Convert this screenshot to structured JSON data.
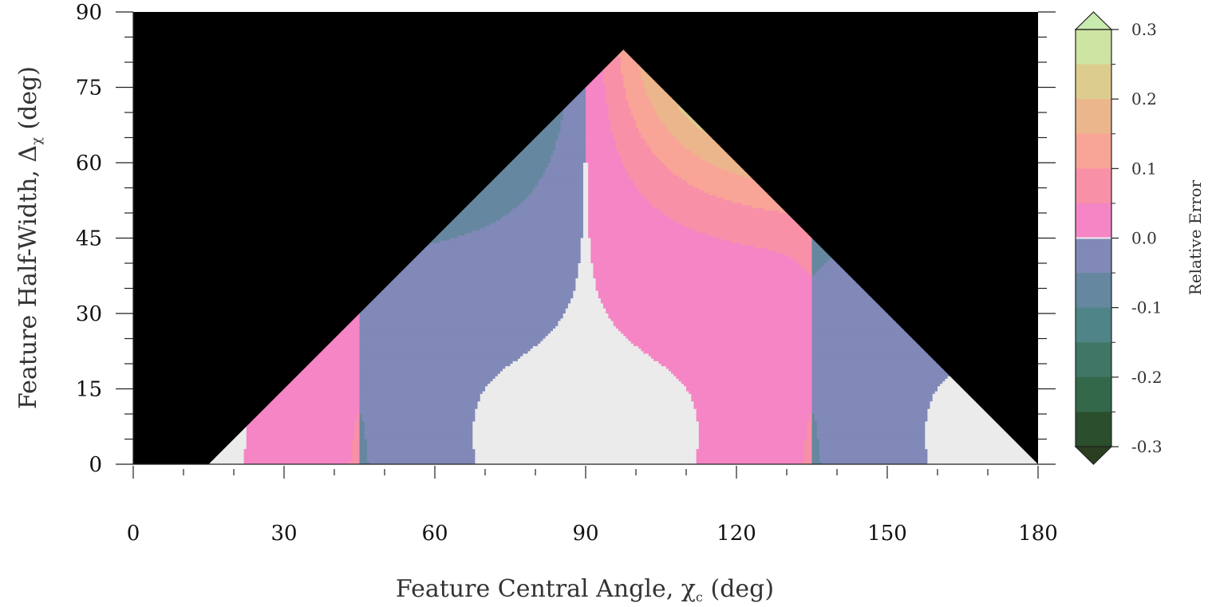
{
  "chart_data": {
    "type": "heatmap",
    "subtype": "filled-contour",
    "xlabel": "Feature Central Angle, χ",
    "xlabel_sub": "c",
    "xlabel_unit": " (deg)",
    "ylabel": "Feature Half-Width, Δ",
    "ylabel_sub": "χ",
    "ylabel_unit": " (deg)",
    "xlim": [
      0,
      180
    ],
    "ylim": [
      0,
      90
    ],
    "xticks": [
      0,
      30,
      60,
      90,
      120,
      150,
      180
    ],
    "xticks_minor_step": 10,
    "yticks": [
      0,
      15,
      30,
      45,
      60,
      75,
      90
    ],
    "yticks_minor_step": 5,
    "undefined_region_color": "#000000",
    "near_zero_color": "#ebebeb",
    "domain_vertices": [
      [
        15,
        0
      ],
      [
        45,
        30
      ],
      [
        90,
        75
      ],
      [
        97.5,
        82.5
      ],
      [
        135,
        45
      ],
      [
        180,
        0
      ]
    ],
    "colorbar": {
      "label": "Relative Error",
      "range": [
        -0.3,
        0.3
      ],
      "extend": "both",
      "tick_values": [
        0.3,
        0.2,
        0.1,
        0.0,
        -0.1,
        -0.2,
        -0.3
      ],
      "tick_labels": [
        "0.3",
        "0.2",
        "0.1",
        "0.0",
        "-0.1",
        "-0.2",
        "-0.3"
      ],
      "levels": [
        {
          "min": 0.25,
          "max": 0.3,
          "color": "#cde4a2"
        },
        {
          "min": 0.2,
          "max": 0.25,
          "color": "#dccd8f"
        },
        {
          "min": 0.15,
          "max": 0.2,
          "color": "#ecb68c"
        },
        {
          "min": 0.1,
          "max": 0.15,
          "color": "#f8a496"
        },
        {
          "min": 0.05,
          "max": 0.1,
          "color": "#f890a8"
        },
        {
          "min": 0.0,
          "max": 0.05,
          "color": "#f585c5"
        },
        {
          "min": -0.05,
          "max": 0.0,
          "color": "#8089b7"
        },
        {
          "min": -0.1,
          "max": -0.05,
          "color": "#6687a0"
        },
        {
          "min": -0.15,
          "max": -0.1,
          "color": "#4f8488"
        },
        {
          "min": -0.2,
          "max": -0.15,
          "color": "#3f7666"
        },
        {
          "min": -0.25,
          "max": -0.2,
          "color": "#33684a"
        },
        {
          "min": -0.3,
          "max": -0.25,
          "color": "#2b4e2c"
        }
      ],
      "over_color": "#c8eaad",
      "under_color": "#2a3f20"
    }
  }
}
